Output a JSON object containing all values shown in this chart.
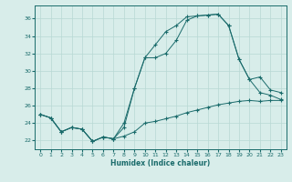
{
  "xlabel": "Humidex (Indice chaleur)",
  "background_color": "#d8edea",
  "grid_color": "#b8d8d4",
  "line_color": "#1a6b6b",
  "xlim": [
    -0.5,
    23.5
  ],
  "ylim": [
    21.0,
    37.5
  ],
  "yticks": [
    22,
    24,
    26,
    28,
    30,
    32,
    34,
    36
  ],
  "xticks": [
    0,
    1,
    2,
    3,
    4,
    5,
    6,
    7,
    8,
    9,
    10,
    11,
    12,
    13,
    14,
    15,
    16,
    17,
    18,
    19,
    20,
    21,
    22,
    23
  ],
  "line1_x": [
    0,
    1,
    2,
    3,
    4,
    5,
    6,
    7,
    8,
    9,
    10,
    11,
    12,
    13,
    14,
    15,
    16,
    17,
    18,
    19,
    20,
    21,
    22,
    23
  ],
  "line1_y": [
    25.0,
    24.6,
    23.0,
    23.5,
    23.3,
    21.9,
    22.4,
    22.2,
    22.5,
    23.0,
    24.0,
    24.2,
    24.5,
    24.8,
    25.2,
    25.5,
    25.8,
    26.1,
    26.3,
    26.5,
    26.6,
    26.5,
    26.6,
    26.6
  ],
  "line2_x": [
    0,
    1,
    2,
    3,
    4,
    5,
    6,
    7,
    8,
    9,
    10,
    11,
    12,
    13,
    14,
    15,
    16,
    17,
    18,
    19,
    20,
    21,
    22,
    23
  ],
  "line2_y": [
    25.0,
    24.6,
    23.0,
    23.5,
    23.3,
    21.9,
    22.4,
    22.2,
    24.0,
    28.0,
    31.5,
    33.0,
    34.5,
    35.2,
    36.2,
    36.3,
    36.4,
    36.5,
    35.2,
    31.3,
    29.0,
    29.3,
    27.8,
    27.5
  ],
  "line3_x": [
    0,
    1,
    2,
    3,
    4,
    5,
    6,
    7,
    8,
    9,
    10,
    11,
    12,
    13,
    14,
    15,
    16,
    17,
    18,
    19,
    20,
    21,
    22,
    23
  ],
  "line3_y": [
    25.0,
    24.6,
    23.0,
    23.5,
    23.3,
    21.9,
    22.4,
    22.2,
    23.5,
    28.0,
    31.5,
    31.5,
    32.0,
    33.5,
    35.8,
    36.3,
    36.4,
    36.5,
    35.2,
    31.3,
    29.0,
    27.5,
    27.2,
    26.7
  ]
}
